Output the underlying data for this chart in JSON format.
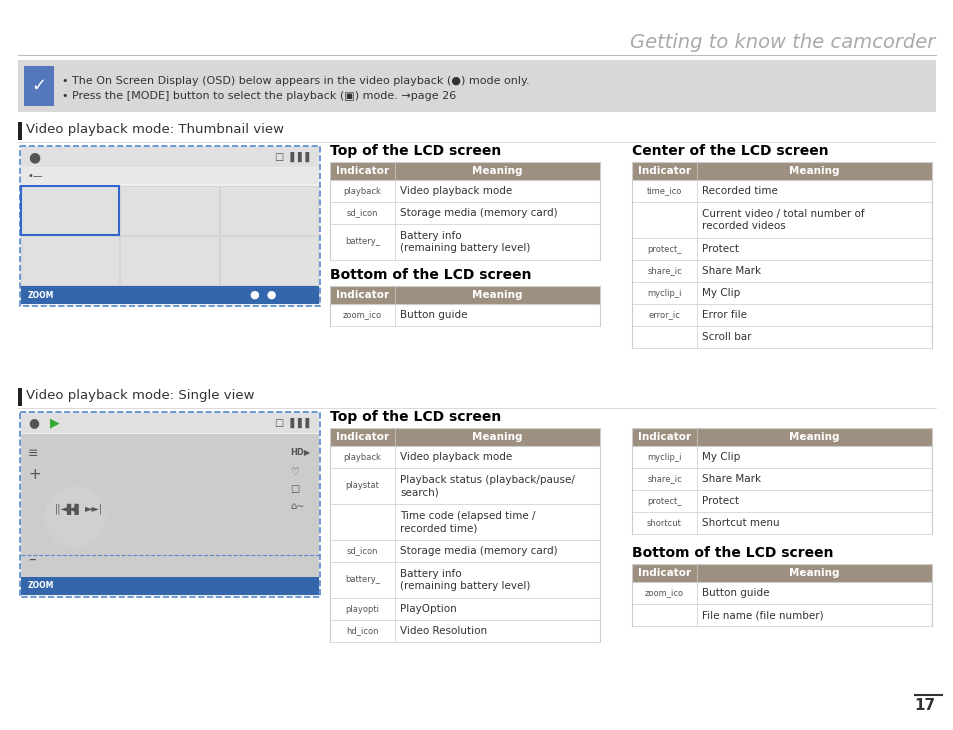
{
  "title": "Getting to know the camcorder",
  "page_number": "17",
  "bg_color": "#ffffff",
  "title_color": "#aaaaaa",
  "note_bg": "#d8d8d8",
  "note_icon_bg": "#5577bb",
  "section_bar_color": "#222222",
  "table_header_bg": "#9e9080",
  "table_header_text": "#ffffff",
  "table_border_color": "#cccccc",
  "note_text_1": "The On Screen Display (OSD) below appears in the video playback (●) mode only.",
  "note_text_2": "Press the [MODE] button to select the playback (▣) mode. →page 26",
  "section1_title": "Video playback mode: Thumbnail view",
  "section2_title": "Video playback mode: Single view",
  "thumb_top_title": "Top of the LCD screen",
  "thumb_center_title": "Center of the LCD screen",
  "thumb_bottom_title": "Bottom of the LCD screen",
  "single_top_title": "Top of the LCD screen",
  "single_bottom_title": "Bottom of the LCD screen",
  "thumb_top_rows": [
    [
      "playback_icon",
      "Video playback mode"
    ],
    [
      "sd_icon",
      "Storage media (memory card)"
    ],
    [
      "battery_icon",
      "Battery info\n(remaining battery level)"
    ]
  ],
  "thumb_bottom_rows": [
    [
      "zoom_icon",
      "Button guide"
    ]
  ],
  "thumb_center_rows": [
    [
      "time_icon",
      "Recorded time"
    ],
    [
      "",
      "Current video / total number of\nrecorded videos"
    ],
    [
      "protect_icon",
      "Protect"
    ],
    [
      "share_icon",
      "Share Mark"
    ],
    [
      "myclip_icon",
      "My Clip"
    ],
    [
      "error_icon",
      "Error file"
    ],
    [
      "",
      "Scroll bar"
    ]
  ],
  "single_top_left_rows": [
    [
      "playback_icon",
      "Video playback mode"
    ],
    [
      "playstatus_icon",
      "Playback status (playback/pause/\nsearch)"
    ],
    [
      "",
      "Time code (elapsed time /\nrecorded time)"
    ],
    [
      "sd_icon",
      "Storage media (memory card)"
    ],
    [
      "battery_icon",
      "Battery info\n(remaining battery level)"
    ],
    [
      "playoption_icon",
      "PlayOption"
    ],
    [
      "hd_icon",
      "Video Resolution"
    ]
  ],
  "single_top_right_rows": [
    [
      "myclip_icon",
      "My Clip"
    ],
    [
      "share_icon",
      "Share Mark"
    ],
    [
      "protect_icon",
      "Protect"
    ],
    [
      "shortcut_icon",
      "Shortcut menu"
    ]
  ],
  "single_bottom_rows": [
    [
      "zoom_icon",
      "Button guide"
    ],
    [
      "",
      "File name (file number)"
    ]
  ]
}
